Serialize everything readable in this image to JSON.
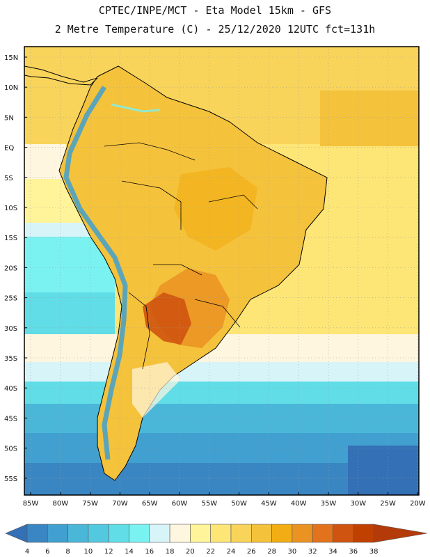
{
  "header": {
    "line1": "CPTEC/INPE/MCT -  Eta Model 15km - GFS",
    "line2": "2 Metre Temperature (C) - 25/12/2020 12UTC fct=131h"
  },
  "map": {
    "lat_labels": [
      "15N",
      "10N",
      "5N",
      "EQ",
      "5S",
      "10S",
      "15S",
      "20S",
      "25S",
      "30S",
      "35S",
      "40S",
      "45S",
      "50S",
      "55S"
    ],
    "lon_labels": [
      "85W",
      "80W",
      "75W",
      "70W",
      "65W",
      "60W",
      "55W",
      "50W",
      "45W",
      "40W",
      "35W",
      "30W",
      "25W",
      "20W"
    ]
  },
  "legend": {
    "values": [
      "4",
      "6",
      "8",
      "10",
      "12",
      "14",
      "16",
      "18",
      "20",
      "22",
      "24",
      "26",
      "28",
      "30",
      "32",
      "34",
      "36",
      "38"
    ],
    "colors": [
      "#3370b5",
      "#3a86c2",
      "#41a0cf",
      "#4ab7d9",
      "#53c9df",
      "#60dde6",
      "#7af2f2",
      "#d7f4f9",
      "#fff6e0",
      "#fff49a",
      "#fee676",
      "#f9d45a",
      "#f5c23b",
      "#f1ad13",
      "#ea9222",
      "#e2731c",
      "#cf5410",
      "#c04000",
      "#b53a0a"
    ]
  }
}
